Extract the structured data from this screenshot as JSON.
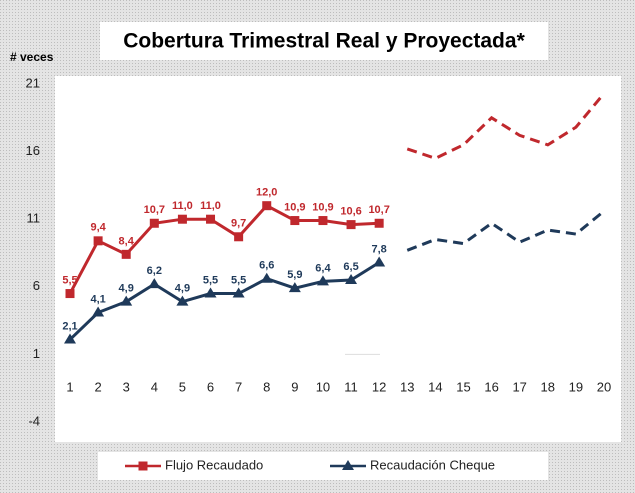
{
  "chart_data": {
    "type": "line",
    "title": "Cobertura Trimestral Real y Proyectada*",
    "y_label": "# veces",
    "categories": [
      "1",
      "2",
      "3",
      "4",
      "5",
      "6",
      "7",
      "8",
      "9",
      "10",
      "11",
      "12",
      "13",
      "14",
      "15",
      "16",
      "17",
      "18",
      "19",
      "20"
    ],
    "projection_start_category": "13",
    "ylim": [
      -4,
      21
    ],
    "yticks": [
      -4,
      1,
      6,
      11,
      16,
      21
    ],
    "series": [
      {
        "name": "Flujo Recaudado",
        "color": "#c0282d",
        "marker": "square",
        "values": [
          5.5,
          9.4,
          8.4,
          10.7,
          11.0,
          11.0,
          9.7,
          12.0,
          10.9,
          10.9,
          10.6,
          10.7,
          16.2,
          15.5,
          16.5,
          18.5,
          17.2,
          16.5,
          17.8,
          20.3
        ],
        "value_labels": [
          "5,5",
          "9,4",
          "8,4",
          "10,7",
          "11,0",
          "11,0",
          "9,7",
          "12,0",
          "10,9",
          "10,9",
          "10,6",
          "10,7",
          null,
          null,
          null,
          null,
          null,
          null,
          null,
          null
        ]
      },
      {
        "name": "Recaudación Cheque",
        "color": "#1f3a5a",
        "marker": "triangle",
        "values": [
          2.1,
          4.1,
          4.9,
          6.2,
          4.9,
          5.5,
          5.5,
          6.6,
          5.9,
          6.4,
          6.5,
          7.8,
          8.7,
          9.5,
          9.2,
          10.7,
          9.3,
          10.2,
          9.9,
          11.6
        ],
        "value_labels": [
          "2,1",
          "4,1",
          "4,9",
          "6,2",
          "4,9",
          "5,5",
          "5,5",
          "6,6",
          "5,9",
          "6,4",
          "6,5",
          "7,8",
          null,
          null,
          null,
          null,
          null,
          null,
          null,
          null
        ]
      }
    ]
  }
}
